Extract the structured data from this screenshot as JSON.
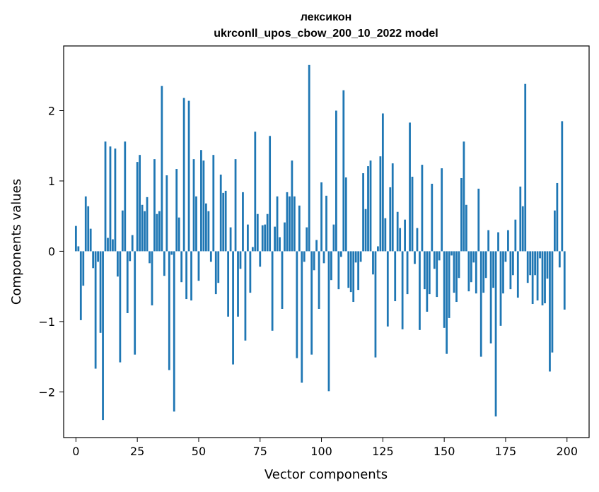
{
  "chart_data": {
    "type": "bar",
    "title": "лексикон",
    "subtitle": "ukrconll_upos_cbow_200_10_2022 model",
    "xlabel": "Vector components",
    "ylabel": "Components values",
    "xlim": [
      -5,
      209
    ],
    "ylim": [
      -2.65,
      2.92
    ],
    "xticks": [
      0,
      25,
      50,
      75,
      100,
      125,
      150,
      175,
      200
    ],
    "xtick_labels": [
      "0",
      "25",
      "50",
      "75",
      "100",
      "125",
      "150",
      "175",
      "200"
    ],
    "yticks": [
      -2,
      -1,
      0,
      1,
      2
    ],
    "ytick_labels": [
      "−2",
      "−1",
      "0",
      "1",
      "2"
    ],
    "grid": false,
    "bar_color": "#1f77b4",
    "x": [
      0,
      1,
      2,
      3,
      4,
      5,
      6,
      7,
      8,
      9,
      10,
      11,
      12,
      13,
      14,
      15,
      16,
      17,
      18,
      19,
      20,
      21,
      22,
      23,
      24,
      25,
      26,
      27,
      28,
      29,
      30,
      31,
      32,
      33,
      34,
      35,
      36,
      37,
      38,
      39,
      40,
      41,
      42,
      43,
      44,
      45,
      46,
      47,
      48,
      49,
      50,
      51,
      52,
      53,
      54,
      55,
      56,
      57,
      58,
      59,
      60,
      61,
      62,
      63,
      64,
      65,
      66,
      67,
      68,
      69,
      70,
      71,
      72,
      73,
      74,
      75,
      76,
      77,
      78,
      79,
      80,
      81,
      82,
      83,
      84,
      85,
      86,
      87,
      88,
      89,
      90,
      91,
      92,
      93,
      94,
      95,
      96,
      97,
      98,
      99,
      100,
      101,
      102,
      103,
      104,
      105,
      106,
      107,
      108,
      109,
      110,
      111,
      112,
      113,
      114,
      115,
      116,
      117,
      118,
      119,
      120,
      121,
      122,
      123,
      124,
      125,
      126,
      127,
      128,
      129,
      130,
      131,
      132,
      133,
      134,
      135,
      136,
      137,
      138,
      139,
      140,
      141,
      142,
      143,
      144,
      145,
      146,
      147,
      148,
      149,
      150,
      151,
      152,
      153,
      154,
      155,
      156,
      157,
      158,
      159,
      160,
      161,
      162,
      163,
      164,
      165,
      166,
      167,
      168,
      169,
      170,
      171,
      172,
      173,
      174,
      175,
      176,
      177,
      178,
      179,
      180,
      181,
      182,
      183,
      184,
      185,
      186,
      187,
      188,
      189,
      190,
      191,
      192,
      193,
      194,
      195,
      196,
      197,
      198,
      199
    ],
    "values": [
      0.36,
      0.07,
      -0.98,
      -0.49,
      0.78,
      0.64,
      0.32,
      -0.24,
      -1.67,
      -0.15,
      -1.16,
      -2.4,
      1.56,
      0.19,
      1.49,
      0.17,
      1.46,
      -0.36,
      -1.58,
      0.58,
      1.56,
      -0.88,
      -0.14,
      0.23,
      -1.47,
      1.27,
      1.37,
      0.66,
      0.57,
      0.77,
      -0.17,
      -0.77,
      1.31,
      0.53,
      0.57,
      2.35,
      -0.35,
      1.08,
      -1.69,
      -0.05,
      -2.28,
      1.17,
      0.48,
      -0.44,
      2.18,
      -0.68,
      2.14,
      -0.7,
      1.31,
      0.78,
      -0.42,
      1.44,
      1.29,
      0.68,
      0.57,
      -0.15,
      1.37,
      -0.61,
      -0.45,
      1.09,
      0.83,
      0.86,
      -0.93,
      0.34,
      -1.61,
      1.31,
      -0.93,
      -0.25,
      0.84,
      -1.27,
      0.38,
      -0.59,
      0.06,
      1.7,
      0.53,
      -0.22,
      0.37,
      0.38,
      0.53,
      1.64,
      -1.13,
      0.35,
      0.78,
      0.2,
      -0.82,
      0.41,
      0.84,
      0.78,
      1.29,
      0.78,
      -1.52,
      0.65,
      -1.87,
      -0.15,
      0.34,
      2.65,
      -1.47,
      -0.27,
      0.16,
      -0.82,
      0.98,
      -0.17,
      0.79,
      -1.99,
      -0.41,
      0.38,
      2.0,
      -0.54,
      -0.08,
      2.29,
      1.05,
      -0.52,
      -0.58,
      -0.72,
      -0.16,
      -0.55,
      -0.15,
      1.11,
      0.6,
      1.21,
      1.29,
      -0.33,
      -1.51,
      0.07,
      1.35,
      1.96,
      0.47,
      -1.07,
      0.91,
      1.25,
      -0.71,
      0.56,
      0.33,
      -1.11,
      0.45,
      -0.61,
      1.83,
      1.06,
      -0.18,
      0.33,
      -1.12,
      1.23,
      -0.54,
      -0.86,
      -0.61,
      0.96,
      -0.25,
      -0.65,
      -0.13,
      1.18,
      -1.09,
      -1.46,
      -0.95,
      -0.06,
      -0.59,
      -0.72,
      -0.38,
      1.04,
      1.56,
      0.66,
      -0.57,
      -0.44,
      -0.16,
      -0.6,
      0.89,
      -1.5,
      -0.59,
      -0.38,
      0.3,
      -1.31,
      -0.52,
      -2.35,
      0.27,
      -1.06,
      -0.6,
      -0.15,
      0.3,
      -0.54,
      -0.34,
      0.45,
      -0.66,
      0.92,
      0.64,
      2.38,
      -0.45,
      -0.34,
      -0.75,
      -0.34,
      -0.7,
      -0.1,
      -0.77,
      -0.74,
      -0.39,
      -1.71,
      -1.44,
      0.58,
      0.97,
      -0.23,
      1.85,
      -0.83
    ]
  }
}
